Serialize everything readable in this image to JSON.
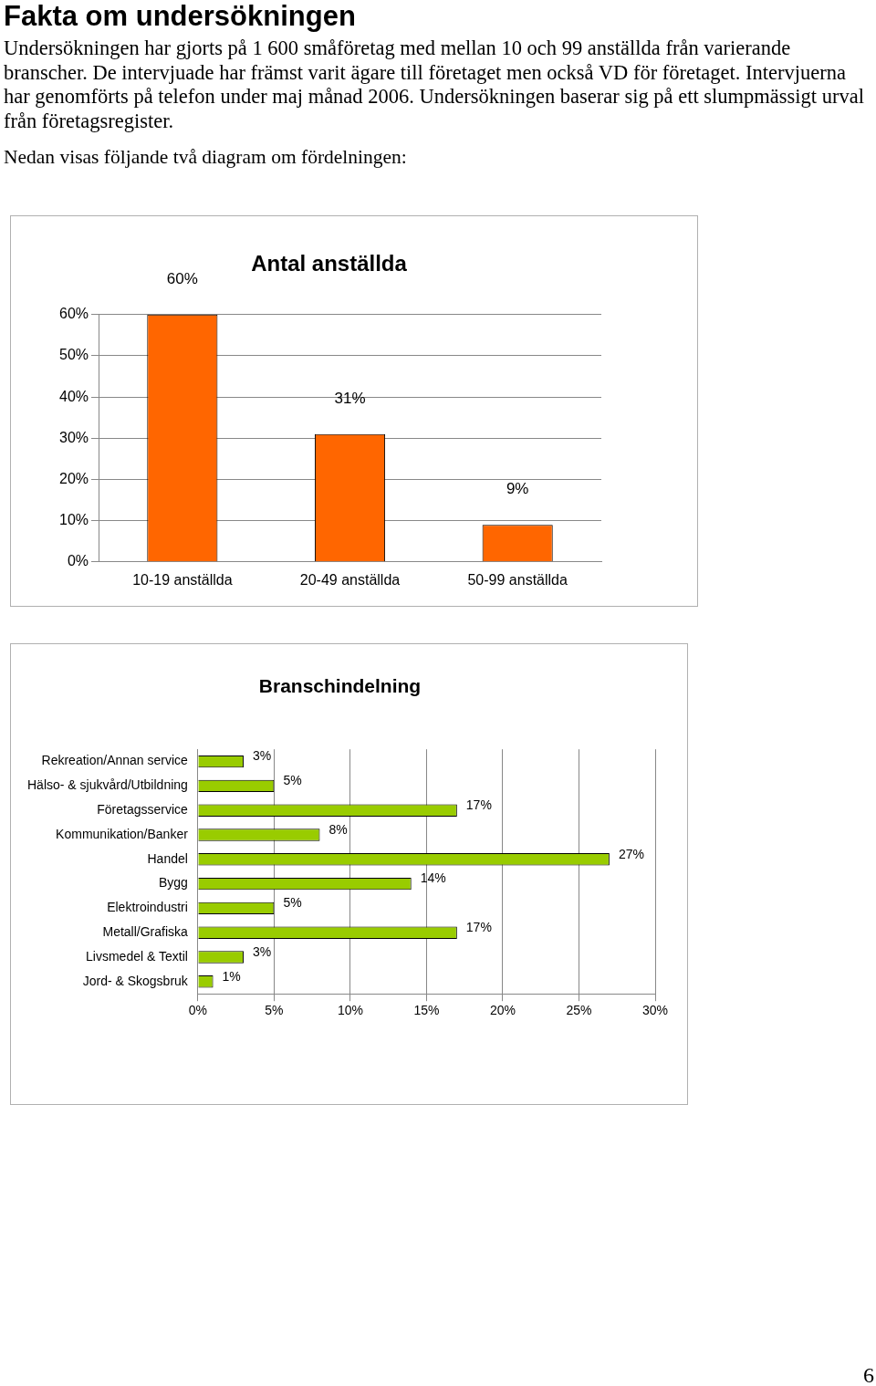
{
  "chart_data": [
    {
      "type": "bar",
      "title": "Antal anställda",
      "annotations": [
        "Fakta om undersökningen",
        "Undersökningen har gjorts på 1 600 småföretag med mellan 10 och 99 anställda från varierande branscher. De intervjuade har främst varit ägare till företaget men också VD för företaget. Intervjuerna har genomförts på telefon under maj månad 2006. Undersökningen baserar sig på ett slumpmässigt urval från företagsregister.",
        "Nedan visas följande två diagram om fördelningen:"
      ],
      "categories": [
        "10-19 anställda",
        "20-49 anställda",
        "50-99 anställda"
      ],
      "values": [
        60,
        31,
        9
      ],
      "value_labels": [
        "60%",
        "31%",
        "9%"
      ],
      "color": "#ff6600",
      "ylim": [
        0,
        60
      ],
      "yticks": [
        {
          "value": 0,
          "label": "0%"
        },
        {
          "value": 10,
          "label": "10%"
        },
        {
          "value": 20,
          "label": "20%"
        },
        {
          "value": 30,
          "label": "30%"
        },
        {
          "value": 40,
          "label": "40%"
        },
        {
          "value": 50,
          "label": "50%"
        },
        {
          "value": 60,
          "label": "60%"
        }
      ],
      "grid": "y"
    },
    {
      "type": "bar",
      "orientation": "horizontal",
      "title": "Branschindelning",
      "annotations": [
        "6"
      ],
      "categories": [
        "Rekreation/Annan service",
        "Hälso- & sjukvård/Utbildning",
        "Företagsservice",
        "Kommunikation/Banker",
        "Handel",
        "Bygg",
        "Elektroindustri",
        "Metall/Grafiska",
        "Livsmedel & Textil",
        "Jord- & Skogsbruk"
      ],
      "values": [
        3,
        5,
        17,
        8,
        27,
        14,
        5,
        17,
        3,
        1
      ],
      "value_labels": [
        "3%",
        "5%",
        "17%",
        "8%",
        "27%",
        "14%",
        "5%",
        "17%",
        "3%",
        "1%"
      ],
      "color": "#99cc00",
      "xlim": [
        0,
        30
      ],
      "xticks": [
        {
          "value": 0,
          "label": "0%"
        },
        {
          "value": 5,
          "label": "5%"
        },
        {
          "value": 10,
          "label": "10%"
        },
        {
          "value": 15,
          "label": "15%"
        },
        {
          "value": 20,
          "label": "20%"
        },
        {
          "value": 25,
          "label": "25%"
        },
        {
          "value": 30,
          "label": "30%"
        }
      ],
      "grid": "x"
    }
  ]
}
